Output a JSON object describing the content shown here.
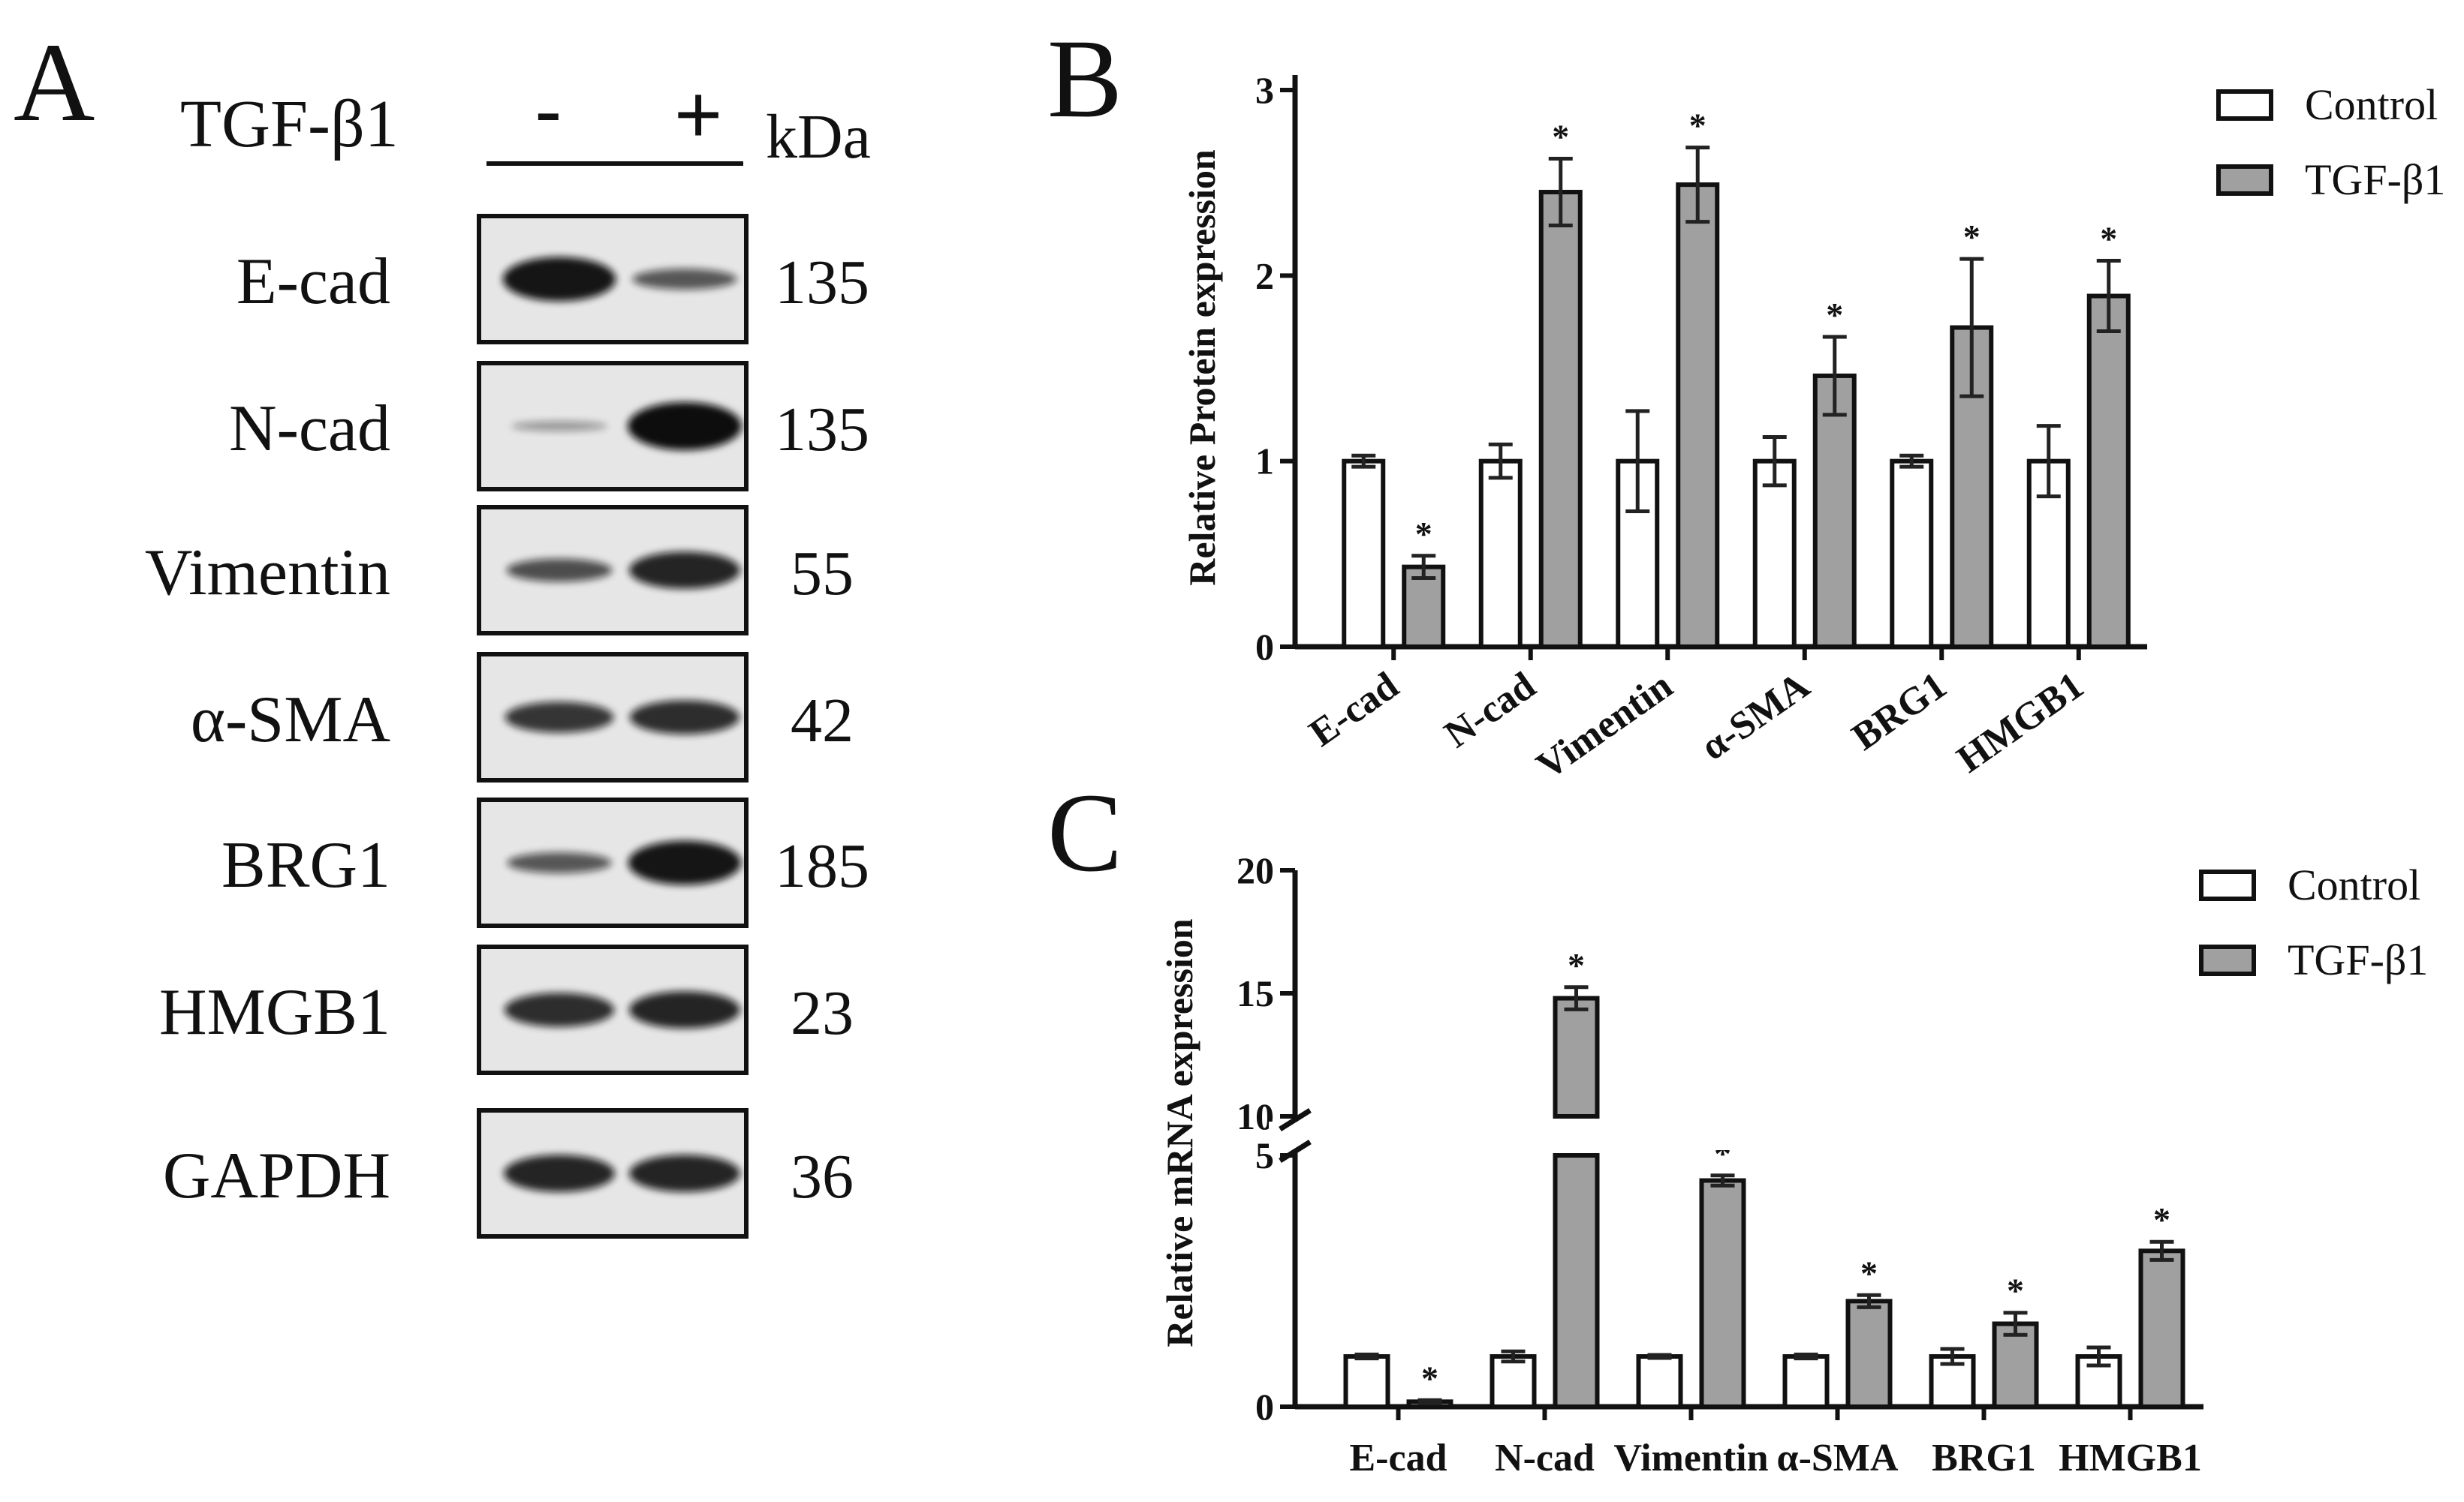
{
  "panel_labels": {
    "a": "A",
    "b": "B",
    "c": "C"
  },
  "western_blot": {
    "treatment_label": "TGF-β1",
    "minus_sign": "-",
    "plus_sign": "+",
    "kda_label": "kDa",
    "rows": [
      {
        "name": "E-cad",
        "kda": "135",
        "band_minus": 0.95,
        "band_plus": 0.55
      },
      {
        "name": "N-cad",
        "kda": "135",
        "band_minus": 0.15,
        "band_plus": 1.0
      },
      {
        "name": "Vimentin",
        "kda": "55",
        "band_minus": 0.6,
        "band_plus": 0.85
      },
      {
        "name": "α-SMA",
        "kda": "42",
        "band_minus": 0.75,
        "band_plus": 0.8
      },
      {
        "name": "BRG1",
        "kda": "185",
        "band_minus": 0.55,
        "band_plus": 0.95
      },
      {
        "name": "HMGB1",
        "kda": "23",
        "band_minus": 0.8,
        "band_plus": 0.85
      },
      {
        "name": "GAPDH",
        "kda": "36",
        "band_minus": 0.85,
        "band_plus": 0.85
      }
    ]
  },
  "chart_data": [
    {
      "type": "bar",
      "panel": "B",
      "title": "",
      "xlabel": "",
      "ylabel": "Relative Protein expression",
      "ylim": [
        0,
        3
      ],
      "yticks": [
        "0",
        "1",
        "2",
        "3"
      ],
      "categories": [
        "E-cad",
        "N-cad",
        "Vimentin",
        "α-SMA",
        "BRG1",
        "HMGB1"
      ],
      "series": [
        {
          "name": "Control",
          "color": "#ffffff",
          "values": [
            1.0,
            1.0,
            1.0,
            1.0,
            1.0,
            1.0
          ],
          "errors": [
            0.03,
            0.09,
            0.27,
            0.13,
            0.03,
            0.19
          ]
        },
        {
          "name": "TGF-β1",
          "color": "#a0a0a0",
          "values": [
            0.43,
            2.45,
            2.49,
            1.46,
            1.72,
            1.89
          ],
          "errors": [
            0.06,
            0.18,
            0.2,
            0.21,
            0.37,
            0.19
          ]
        }
      ],
      "significance": [
        "*",
        "*",
        "*",
        "*",
        "*",
        "*"
      ],
      "legend": "top-right",
      "grid": false
    },
    {
      "type": "bar",
      "panel": "C",
      "title": "",
      "xlabel": "",
      "ylabel": "Relative mRNA expression",
      "ylim": [
        0,
        20
      ],
      "axis_break": [
        5,
        10
      ],
      "yticks": [
        "0",
        "5",
        "10",
        "15",
        "20"
      ],
      "categories": [
        "E-cad",
        "N-cad",
        "Vimentin",
        "α-SMA",
        "BRG1",
        "HMGB1"
      ],
      "series": [
        {
          "name": "Control",
          "color": "#ffffff",
          "values": [
            1.0,
            1.0,
            1.0,
            1.0,
            1.0,
            1.0
          ],
          "errors": [
            0.04,
            0.1,
            0.03,
            0.04,
            0.15,
            0.18
          ]
        },
        {
          "name": "TGF-β1",
          "color": "#a0a0a0",
          "values": [
            0.1,
            14.8,
            4.5,
            2.1,
            1.65,
            3.1
          ],
          "errors": [
            0.03,
            0.45,
            0.1,
            0.12,
            0.22,
            0.18
          ]
        }
      ],
      "significance": [
        "*",
        "*",
        "*",
        "*",
        "*",
        "*"
      ],
      "legend": "top-right",
      "grid": false
    }
  ]
}
